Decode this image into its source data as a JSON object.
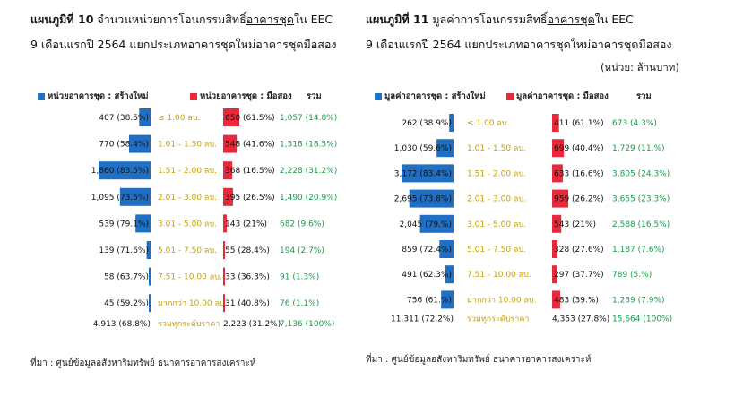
{
  "colors": {
    "new": "#1f6fc5",
    "used": "#e8293a",
    "range": "#c8a000",
    "total": "#1b9a4a",
    "text": "#222222"
  },
  "left": {
    "title_bold": "แผนภูมิที่ 10",
    "title_rest": " จำนวนหน่วยการโอนกรรมสิทธิ์",
    "title_underlined": "อาคารชุด",
    "title_suffix": "ใน EEC",
    "subtitle": "9 เดือนแรกปี 2564 แยกประเภทอาคารชุดใหม่อาคารชุดมือสอง",
    "legend_new": "หน่วยอาคารชุด : สร้างใหม่",
    "legend_used": "หน่วยอาคารชุด : มือสอง",
    "legend_total": "รวม",
    "source": "ที่มา : ศูนย์ข้อมูลอสังหาริมทรัพย์ ธนาคารอาคารสงเคราะห์"
  },
  "right": {
    "title_bold": "แผนภูมิที่ 11",
    "title_rest": " มูลค่าการโอนกรรมสิทธิ์",
    "title_underlined": "อาคารชุด",
    "title_suffix": "ใน EEC",
    "subtitle": "9 เดือนแรกปี 2564  แยกประเภทอาคารชุดใหม่อาคารชุดมือสอง",
    "unit_note": "(หน่วย: ล้านบาท)",
    "legend_new": "มูลค่าอาคารชุด : สร้างใหม่",
    "legend_used": "มูลค่าอาคารชุด : มือสอง",
    "legend_total": "รวม",
    "source": "ที่มา : ศูนย์ข้อมูลอสังหาริมทรัพย์ ธนาคารอาคารสงเคราะห์"
  },
  "chart_data": [
    {
      "type": "bar",
      "title": "จำนวนหน่วยการโอนกรรมสิทธิ์อาคารชุดใน EEC",
      "categories": [
        "≤ 1.00 ลบ.",
        "1.01 - 1.50 ลบ.",
        "1.51 - 2.00 ลบ.",
        "2.01 - 3.00 ลบ.",
        "3.01 - 5.00 ลบ.",
        "5.01 - 7.50 ลบ.",
        "7.51 - 10.00 ลบ.",
        "มากกว่า 10.00 ลบ."
      ],
      "series": [
        {
          "name": "หน่วยอาคารชุด : สร้างใหม่",
          "values": [
            407,
            770,
            1860,
            1095,
            539,
            139,
            58,
            45
          ],
          "labels": [
            "407 (38.5%)",
            "770 (58.4%)",
            "1,860 (83.5%)",
            "1,095 (73.5%)",
            "539 (79.1%)",
            "139 (71.6%)",
            "58 (63.7%)",
            "45 (59.2%)"
          ]
        },
        {
          "name": "หน่วยอาคารชุด : มือสอง",
          "values": [
            650,
            548,
            368,
            395,
            143,
            55,
            33,
            31
          ],
          "labels": [
            "650 (61.5%)",
            "548 (41.6%)",
            "368 (16.5%)",
            "395 (26.5%)",
            "143 (21%)",
            "55 (28.4%)",
            "33 (36.3%)",
            "31 (40.8%)"
          ]
        },
        {
          "name": "รวม",
          "values": [
            1057,
            1318,
            2228,
            1490,
            682,
            194,
            91,
            76
          ],
          "labels": [
            "1,057 (14.8%)",
            "1,318 (18.5%)",
            "2,228 (31.2%)",
            "1,490 (20.9%)",
            "682 (9.6%)",
            "194 (2.7%)",
            "91 (1.3%)",
            "76 (1.1%)"
          ]
        }
      ],
      "total_row": {
        "label": "รวมทุกระดับราคา",
        "new": "4,913 (68.8%)",
        "used": "2,223 (31.2%)",
        "total": "7,136 (100%)"
      }
    },
    {
      "type": "bar",
      "title": "มูลค่าการโอนกรรมสิทธิ์อาคารชุดใน EEC",
      "unit": "ล้านบาท",
      "categories": [
        "≤ 1.00 ลบ.",
        "1.01 - 1.50 ลบ.",
        "1.51 - 2.00 ลบ.",
        "2.01 - 3.00 ลบ.",
        "3.01 - 5.00 ลบ.",
        "5.01 - 7.50 ลบ.",
        "7.51 - 10.00 ลบ.",
        "มากกว่า 10.00 ลบ."
      ],
      "series": [
        {
          "name": "มูลค่าอาคารชุด : สร้างใหม่",
          "values": [
            262,
            1030,
            3172,
            2695,
            2045,
            859,
            491,
            756
          ],
          "labels": [
            "262 (38.9%)",
            "1,030 (59.6%)",
            "3,172 (83.4%)",
            "2,695 (73.8%)",
            "2,045 (79.%)",
            "859 (72.4%)",
            "491 (62.3%)",
            "756 (61.%)"
          ]
        },
        {
          "name": "มูลค่าอาคารชุด : มือสอง",
          "values": [
            411,
            699,
            633,
            959,
            543,
            328,
            297,
            483
          ],
          "labels": [
            "411 (61.1%)",
            "699 (40.4%)",
            "633 (16.6%)",
            "959 (26.2%)",
            "543 (21%)",
            "328 (27.6%)",
            "297 (37.7%)",
            "483 (39.%)"
          ]
        },
        {
          "name": "รวม",
          "values": [
            673,
            1729,
            3805,
            3655,
            2588,
            1187,
            789,
            1239
          ],
          "labels": [
            "673 (4.3%)",
            "1,729 (11.%)",
            "3,805 (24.3%)",
            "3,655 (23.3%)",
            "2,588 (16.5%)",
            "1,187 (7.6%)",
            "789 (5.%)",
            "1,239 (7.9%)"
          ]
        }
      ],
      "total_row": {
        "label": "รวมทุกระดับราคา",
        "new": "11,311 (72.2%)",
        "used": "4,353 (27.8%)",
        "total": "15,664 (100%)"
      }
    }
  ]
}
